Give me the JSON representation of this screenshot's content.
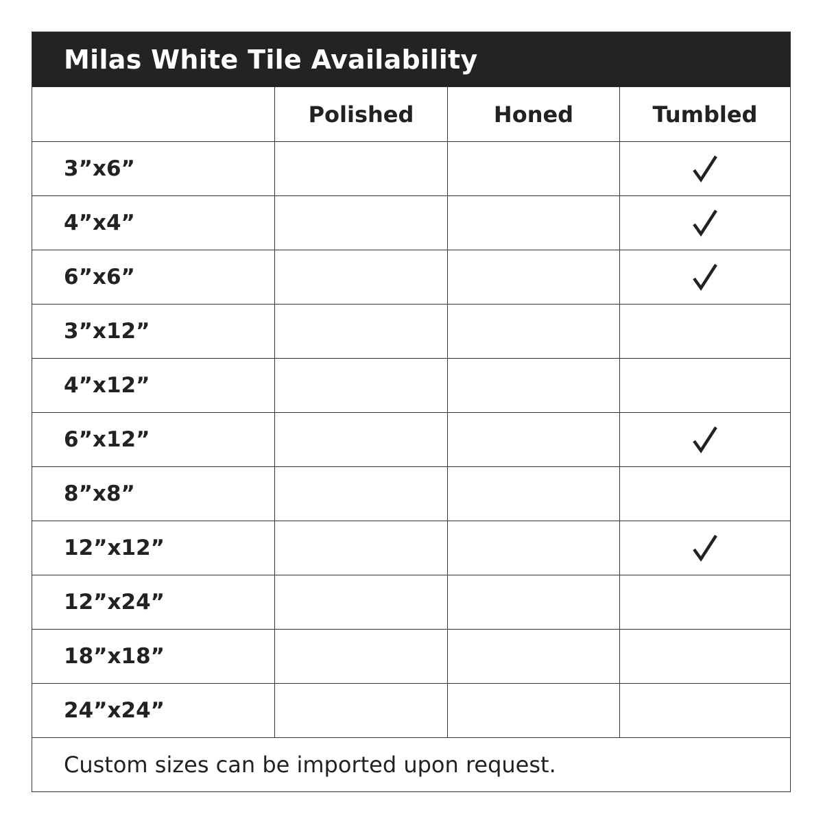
{
  "title": "Milas White Tile Availability",
  "columns": [
    "",
    "Polished",
    "Honed",
    "Tumbled"
  ],
  "rows": [
    {
      "size": "3”x6”",
      "available": [
        false,
        false,
        true
      ]
    },
    {
      "size": "4”x4”",
      "available": [
        false,
        false,
        true
      ]
    },
    {
      "size": "6”x6”",
      "available": [
        false,
        false,
        true
      ]
    },
    {
      "size": "3”x12”",
      "available": [
        false,
        false,
        false
      ]
    },
    {
      "size": "4”x12”",
      "available": [
        false,
        false,
        false
      ]
    },
    {
      "size": "6”x12”",
      "available": [
        false,
        false,
        true
      ]
    },
    {
      "size": "8”x8”",
      "available": [
        false,
        false,
        false
      ]
    },
    {
      "size": "12”x12”",
      "available": [
        false,
        false,
        true
      ]
    },
    {
      "size": "12”x24”",
      "available": [
        false,
        false,
        false
      ]
    },
    {
      "size": "18”x18”",
      "available": [
        false,
        false,
        false
      ]
    },
    {
      "size": "24”x24”",
      "available": [
        false,
        false,
        false
      ]
    }
  ],
  "check_icon": "checkmark-icon",
  "footer": "Custom sizes can be imported upon request.",
  "colors": {
    "header_bg": "#232323",
    "border": "#333333",
    "text": "#222222"
  }
}
